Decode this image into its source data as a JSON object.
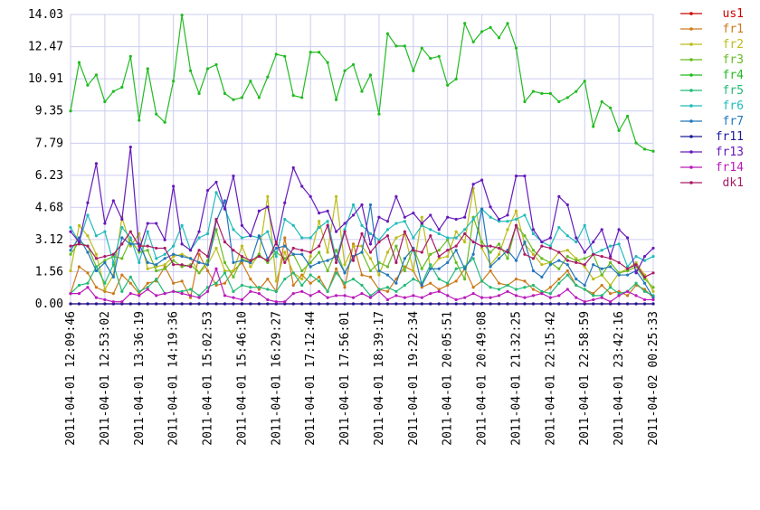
{
  "chart_data": {
    "type": "line",
    "categories": [
      "2011-04-01 12:09:46",
      null,
      null,
      null,
      "2011-04-01 12:53:02",
      null,
      null,
      null,
      "2011-04-01 13:36:19",
      null,
      null,
      null,
      "2011-04-01 14:19:36",
      null,
      null,
      null,
      "2011-04-01 15:02:53",
      null,
      null,
      null,
      "2011-04-01 15:46:10",
      null,
      null,
      null,
      "2011-04-01 16:29:27",
      null,
      null,
      null,
      "2011-04-01 17:12:44",
      null,
      null,
      null,
      "2011-04-01 17:56:01",
      null,
      null,
      null,
      "2011-04-01 18:39:17",
      null,
      null,
      null,
      "2011-04-01 19:22:34",
      null,
      null,
      null,
      "2011-04-01 20:05:51",
      null,
      null,
      null,
      "2011-04-01 20:49:08",
      null,
      null,
      null,
      "2011-04-01 21:32:25",
      null,
      null,
      null,
      "2011-04-01 22:15:42",
      null,
      null,
      null,
      "2011-04-01 22:58:59",
      null,
      null,
      null,
      "2011-04-01 23:42:16",
      null,
      null,
      null,
      "2011-04-02 00:25:33"
    ],
    "ylim": [
      0,
      14.03
    ],
    "yticks": [
      {
        "value": 0,
        "label": "0.00"
      },
      1.56,
      3.12,
      4.68,
      6.23,
      7.79,
      9.35,
      10.91,
      12.47,
      14.03
    ],
    "grid": true,
    "legend": "right",
    "series": [
      {
        "name": "us1",
        "color": "#cc0000",
        "values": [
          0,
          0,
          0,
          0,
          0,
          0,
          0,
          0,
          0,
          0,
          0,
          0,
          0,
          0,
          0,
          0,
          0,
          0,
          0,
          0,
          0,
          0,
          0,
          0,
          0,
          0,
          0,
          0,
          0,
          0,
          0,
          0,
          0,
          0,
          0,
          0,
          0,
          0,
          0,
          0,
          0,
          0,
          0,
          0,
          0,
          0,
          0,
          0,
          0,
          0,
          0,
          0,
          0,
          0,
          0,
          0,
          0,
          0,
          0,
          0,
          0,
          0,
          0,
          0,
          0,
          0,
          0,
          0,
          0
        ]
      },
      {
        "name": "fr1",
        "color": "#cc7a1a",
        "values": [
          0.5,
          1.8,
          1.5,
          0.8,
          0.6,
          0.5,
          1.4,
          1.0,
          0.5,
          1.0,
          1.1,
          1.8,
          1.0,
          1.1,
          0.3,
          2.4,
          1.6,
          0.9,
          1.0,
          1.6,
          2.0,
          1.2,
          0.7,
          1.2,
          0.6,
          3.2,
          0.9,
          1.4,
          1.0,
          1.3,
          0.6,
          1.7,
          0.8,
          2.9,
          1.4,
          1.3,
          0.7,
          0.6,
          1.2,
          1.8,
          1.6,
          0.8,
          1.0,
          0.7,
          0.9,
          1.1,
          1.7,
          0.8,
          1.1,
          1.6,
          1.0,
          0.9,
          1.2,
          1.1,
          0.7,
          0.5,
          0.8,
          1.2,
          1.6,
          0.9,
          0.7,
          0.5,
          0.9,
          0.5,
          0.6,
          0.4,
          0.9,
          0.7,
          0.3
        ]
      },
      {
        "name": "fr2",
        "color": "#bcbc1a",
        "values": [
          1.6,
          3.8,
          3.3,
          2.4,
          0.7,
          1.4,
          4.2,
          2.8,
          3.4,
          1.7,
          1.8,
          1.9,
          2.3,
          2.4,
          2.2,
          1.5,
          1.9,
          2.7,
          1.6,
          1.6,
          2.8,
          1.8,
          2.4,
          5.2,
          1.1,
          2.5,
          1.5,
          1.2,
          2.3,
          4.0,
          2.5,
          5.2,
          1.9,
          2.8,
          2.8,
          2.2,
          1.4,
          2.5,
          3.2,
          3.4,
          1.6,
          4.2,
          1.7,
          2.2,
          2.3,
          3.5,
          3.0,
          5.6,
          2.7,
          1.9,
          2.4,
          3.6,
          4.5,
          2.9,
          2.4,
          1.9,
          2.0,
          2.5,
          2.6,
          2.2,
          1.8,
          1.2,
          1.4,
          0.9,
          1.5,
          1.7,
          2.0,
          1.4,
          0.6
        ]
      },
      {
        "name": "fr3",
        "color": "#66bb22",
        "values": [
          2.4,
          3.0,
          2.8,
          1.8,
          2.1,
          2.3,
          2.2,
          3.1,
          2.5,
          2.6,
          1.6,
          1.7,
          2.1,
          1.8,
          1.9,
          1.5,
          2.1,
          3.6,
          2.0,
          1.3,
          2.2,
          2.0,
          2.4,
          2.0,
          2.5,
          2.2,
          2.4,
          1.6,
          2.0,
          2.5,
          1.6,
          2.6,
          1.5,
          2.3,
          2.5,
          1.6,
          2.0,
          1.8,
          2.8,
          1.6,
          2.7,
          1.7,
          2.4,
          2.6,
          3.1,
          2.0,
          1.2,
          4.2,
          3.0,
          2.5,
          2.9,
          2.2,
          3.8,
          3.3,
          2.6,
          2.2,
          2.0,
          1.7,
          2.3,
          2.1,
          2.2,
          2.4,
          1.4,
          2.0,
          1.5,
          1.6,
          1.8,
          1.2,
          0.8
        ]
      },
      {
        "name": "fr4",
        "color": "#22bb22",
        "values": [
          9.35,
          11.7,
          10.6,
          11.1,
          9.8,
          10.3,
          10.5,
          12.0,
          8.9,
          11.4,
          9.2,
          8.8,
          10.8,
          14.0,
          11.3,
          10.2,
          11.4,
          11.6,
          10.2,
          9.9,
          10.0,
          10.8,
          10.0,
          11.0,
          12.1,
          12.0,
          10.1,
          10.0,
          12.2,
          12.2,
          11.7,
          9.9,
          11.3,
          11.6,
          10.3,
          11.1,
          9.2,
          13.1,
          12.5,
          12.5,
          11.3,
          12.4,
          11.9,
          12.0,
          10.6,
          10.9,
          13.6,
          12.7,
          13.2,
          13.4,
          12.9,
          13.6,
          12.4,
          9.8,
          10.3,
          10.2,
          10.2,
          9.8,
          10.0,
          10.3,
          10.8,
          8.6,
          9.8,
          9.5,
          8.4,
          9.1,
          7.8,
          7.5,
          7.4
        ]
      },
      {
        "name": "fr5",
        "color": "#22bb77",
        "values": [
          0.5,
          0.9,
          1.0,
          1.8,
          1.0,
          1.9,
          0.6,
          1.3,
          0.6,
          0.8,
          1.2,
          0.5,
          0.6,
          0.6,
          0.7,
          0.4,
          0.8,
          1.0,
          1.5,
          0.6,
          0.9,
          0.8,
          0.8,
          0.7,
          0.6,
          1.2,
          1.5,
          0.9,
          1.4,
          1.1,
          0.6,
          1.5,
          1.0,
          1.2,
          0.9,
          0.4,
          0.7,
          0.8,
          0.6,
          0.9,
          1.2,
          1.0,
          1.9,
          1.2,
          1.0,
          1.7,
          1.8,
          2.2,
          1.1,
          0.8,
          0.7,
          0.9,
          0.7,
          0.8,
          0.9,
          0.6,
          0.5,
          1.0,
          1.4,
          0.9,
          0.7,
          0.4,
          0.4,
          0.8,
          0.5,
          0.6,
          1.0,
          0.6,
          0.4
        ]
      },
      {
        "name": "fr6",
        "color": "#22bbbb",
        "values": [
          3.7,
          3.0,
          4.3,
          3.3,
          3.5,
          2.0,
          3.7,
          3.2,
          2.0,
          3.5,
          2.2,
          2.4,
          2.8,
          3.8,
          2.6,
          3.2,
          3.4,
          5.4,
          4.6,
          3.6,
          3.2,
          3.3,
          3.2,
          3.5,
          2.3,
          4.1,
          3.8,
          3.2,
          3.2,
          3.7,
          4.0,
          2.2,
          3.6,
          4.8,
          3.8,
          3.4,
          3.1,
          3.6,
          3.9,
          4.0,
          3.2,
          3.8,
          3.6,
          3.4,
          3.2,
          3.2,
          3.6,
          4.1,
          4.6,
          4.2,
          4.0,
          4.0,
          4.1,
          4.3,
          3.4,
          3.0,
          2.8,
          3.7,
          3.3,
          3.0,
          3.8,
          2.4,
          2.6,
          2.8,
          2.9,
          1.8,
          2.3,
          2.1,
          2.3
        ]
      },
      {
        "name": "fr7",
        "color": "#2277bb",
        "values": [
          2.6,
          3.2,
          2.5,
          1.6,
          2.0,
          1.3,
          3.2,
          2.9,
          2.9,
          2.0,
          1.9,
          2.2,
          2.4,
          2.3,
          2.2,
          2.0,
          1.9,
          4.0,
          5.0,
          2.0,
          2.1,
          2.0,
          3.3,
          2.2,
          2.7,
          2.8,
          2.4,
          2.4,
          1.8,
          2.0,
          2.1,
          2.3,
          1.5,
          2.3,
          2.5,
          4.8,
          1.6,
          1.4,
          1.0,
          2.2,
          2.7,
          0.9,
          1.7,
          1.7,
          2.0,
          2.6,
          1.7,
          2.4,
          4.6,
          1.8,
          2.2,
          2.6,
          2.1,
          3.0,
          1.6,
          1.3,
          1.9,
          2.1,
          1.9,
          1.2,
          0.9,
          1.9,
          1.7,
          1.8,
          1.4,
          1.4,
          1.6,
          1.0,
          0.3
        ]
      },
      {
        "name": "fr11",
        "color": "#1a1a99",
        "values": [
          0,
          0,
          0,
          0,
          0,
          0,
          0,
          0,
          0,
          0,
          0,
          0,
          0,
          0,
          0,
          0,
          0,
          0,
          0,
          0,
          0,
          0,
          0,
          0,
          0,
          0,
          0,
          0,
          0,
          0,
          0,
          0,
          0,
          0,
          0,
          0,
          0,
          0,
          0,
          0,
          0,
          0,
          0,
          0,
          0,
          0,
          0,
          0,
          0,
          0,
          0,
          0,
          0,
          0,
          0,
          0,
          0,
          0,
          0,
          0,
          0,
          0,
          0,
          0,
          0,
          0,
          0,
          0,
          0
        ]
      },
      {
        "name": "fr13",
        "color": "#661abb",
        "values": [
          3.5,
          3.0,
          4.9,
          6.8,
          3.9,
          5.0,
          4.1,
          7.6,
          2.6,
          3.9,
          3.9,
          3.1,
          5.7,
          2.9,
          2.6,
          3.5,
          5.5,
          5.9,
          4.6,
          6.2,
          3.8,
          3.3,
          4.5,
          4.7,
          2.9,
          4.9,
          6.6,
          5.7,
          5.2,
          4.4,
          4.5,
          3.5,
          3.9,
          4.3,
          4.8,
          2.9,
          4.2,
          4.0,
          5.2,
          4.2,
          4.4,
          3.9,
          4.3,
          3.6,
          4.2,
          4.1,
          4.2,
          5.8,
          6.0,
          4.7,
          4.1,
          4.3,
          6.2,
          6.2,
          3.6,
          3.0,
          3.2,
          5.2,
          4.8,
          3.2,
          2.5,
          3.0,
          3.6,
          2.3,
          3.6,
          3.2,
          1.5,
          2.3,
          2.7
        ]
      },
      {
        "name": "fr14",
        "color": "#bb1abb",
        "values": [
          0.5,
          0.5,
          0.8,
          0.3,
          0.2,
          0.1,
          0.1,
          0.5,
          0.4,
          0.7,
          0.4,
          0.5,
          0.6,
          0.5,
          0.4,
          0.3,
          0.6,
          1.7,
          0.4,
          0.3,
          0.2,
          0.6,
          0.5,
          0.2,
          0.1,
          0.1,
          0.5,
          0.6,
          0.4,
          0.6,
          0.3,
          0.4,
          0.4,
          0.3,
          0.5,
          0.3,
          0.6,
          0.2,
          0.4,
          0.3,
          0.4,
          0.3,
          0.5,
          0.6,
          0.4,
          0.2,
          0.3,
          0.5,
          0.3,
          0.3,
          0.4,
          0.6,
          0.4,
          0.3,
          0.4,
          0.5,
          0.3,
          0.4,
          0.7,
          0.3,
          0.1,
          0.2,
          0.3,
          0.1,
          0.4,
          0.6,
          0.4,
          0.2,
          0.2
        ]
      },
      {
        "name": "dk1",
        "color": "#aa1a66",
        "values": [
          2.8,
          2.9,
          2.8,
          2.2,
          2.3,
          2.4,
          2.9,
          3.5,
          2.8,
          2.8,
          2.7,
          2.7,
          1.9,
          1.9,
          1.8,
          2.6,
          2.3,
          4.1,
          3.0,
          2.6,
          2.3,
          2.1,
          2.3,
          2.1,
          3.0,
          2.0,
          2.7,
          2.6,
          2.5,
          2.8,
          3.8,
          2.0,
          3.5,
          2.1,
          3.4,
          2.5,
          3.0,
          3.3,
          2.0,
          3.5,
          2.6,
          2.5,
          3.3,
          2.3,
          2.6,
          2.8,
          3.4,
          3.0,
          2.8,
          2.8,
          2.7,
          2.5,
          3.8,
          2.4,
          2.2,
          2.8,
          2.7,
          2.5,
          2.1,
          2.0,
          1.9,
          2.4,
          2.3,
          2.2,
          2.0,
          1.7,
          1.9,
          1.3,
          1.5
        ]
      }
    ]
  }
}
